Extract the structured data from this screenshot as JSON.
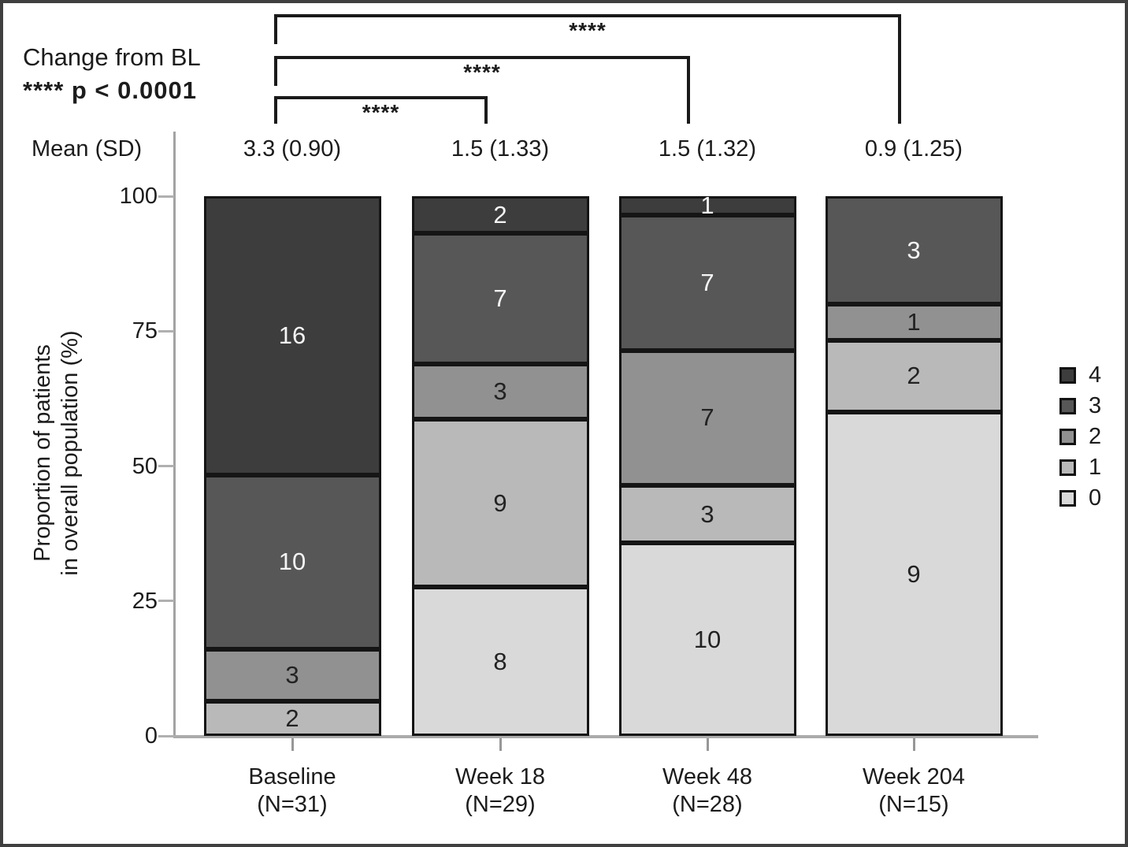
{
  "annotation": {
    "line1": "Change from BL",
    "line2": "**** p < 0.0001"
  },
  "mean_row": {
    "label": "Mean (SD)"
  },
  "y_axis": {
    "label_line1": "Proportion of patients",
    "label_line2": "in overall population (%)",
    "ticks": [
      100,
      75,
      50,
      25,
      0
    ]
  },
  "significance": {
    "brackets": [
      {
        "from": "Baseline",
        "to": "Week 18",
        "stars": "****"
      },
      {
        "from": "Baseline",
        "to": "Week 48",
        "stars": "****"
      },
      {
        "from": "Baseline",
        "to": "Week 204",
        "stars": "****"
      }
    ]
  },
  "chart_data": {
    "type": "bar",
    "stacked": true,
    "title": "",
    "xlabel": "",
    "ylabel": "Proportion of patients in overall population (%)",
    "ylim": [
      0,
      100
    ],
    "grid": false,
    "legend_position": "right",
    "categories": [
      "Baseline",
      "Week 18",
      "Week 48",
      "Week 204"
    ],
    "n_labels": [
      "(N=31)",
      "(N=29)",
      "(N=28)",
      "(N=15)"
    ],
    "totals": [
      31,
      29,
      28,
      15
    ],
    "mean_sd": [
      "3.3 (0.90)",
      "1.5 (1.33)",
      "1.5 (1.32)",
      "0.9 (1.25)"
    ],
    "series": [
      {
        "name": "0",
        "color": "#d9d9d9",
        "label_color": "#222222",
        "values": [
          0,
          8,
          10,
          9
        ]
      },
      {
        "name": "1",
        "color": "#b9b9b9",
        "label_color": "#222222",
        "values": [
          2,
          9,
          3,
          2
        ]
      },
      {
        "name": "2",
        "color": "#919191",
        "label_color": "#222222",
        "values": [
          3,
          3,
          7,
          1
        ]
      },
      {
        "name": "3",
        "color": "#575757",
        "label_color": "#f5f5f5",
        "values": [
          10,
          7,
          7,
          3
        ]
      },
      {
        "name": "4",
        "color": "#3d3d3d",
        "label_color": "#f5f5f5",
        "values": [
          16,
          2,
          1,
          0
        ]
      }
    ]
  }
}
